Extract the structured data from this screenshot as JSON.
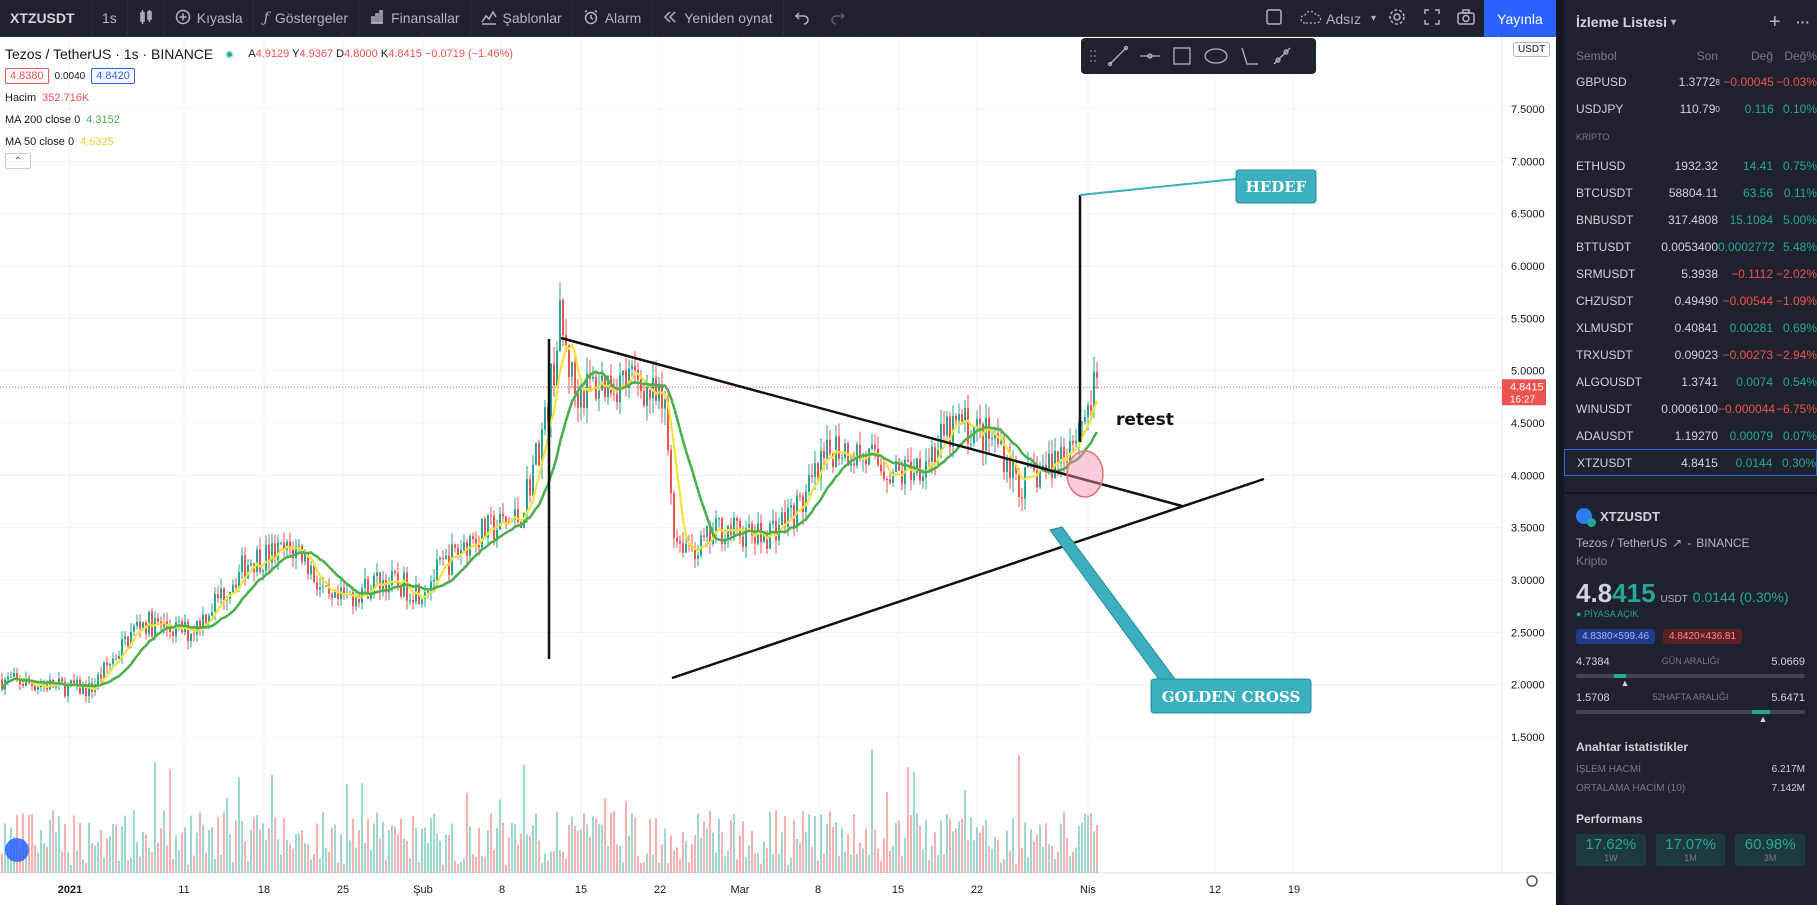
{
  "toolbar": {
    "symbol": "XTZUSDT",
    "interval": "1s",
    "compare": "Kıyasla",
    "indicators": "Göstergeler",
    "financials": "Finansallar",
    "templates": "Şablonlar",
    "alert": "Alarm",
    "replay": "Yeniden oynat",
    "layout_name": "Adsız",
    "publish": "Yayınla"
  },
  "legend": {
    "title": "Tezos / TetherUS · 1s · BINANCE",
    "open_label": "A",
    "open": "4.9129",
    "high_label": "Y",
    "high": "4.9367",
    "low_label": "D",
    "low": "4.8000",
    "close_label": "K",
    "close": "4.8415",
    "change": "−0.0719 (−1.46%)",
    "bid": "4.8380",
    "spread": "0.0040",
    "ask": "4.8420",
    "volume_label": "Hacim",
    "volume": "352.716K",
    "ma200_label": "MA 200 close 0",
    "ma200": "4.3152",
    "ma50_label": "MA 50 close 0",
    "ma50": "4.6325",
    "currency": "USDT",
    "last_price": "4.8415",
    "countdown": "16:27"
  },
  "price_axis": [
    "7.5000",
    "7.0000",
    "6.5000",
    "6.0000",
    "5.5000",
    "5.0000",
    "4.5000",
    "4.0000",
    "3.5000",
    "3.0000",
    "2.5000",
    "2.0000",
    "1.5000"
  ],
  "time_axis": [
    "2021",
    "11",
    "18",
    "25",
    "Şub",
    "8",
    "15",
    "22",
    "Mar",
    "8",
    "15",
    "22",
    "Nis",
    "12",
    "19"
  ],
  "annotations": {
    "target": "HEDEF",
    "golden_cross": "GOLDEN CROSS",
    "retest": "retest"
  },
  "colors": {
    "ma50": "#f5e23b",
    "ma200": "#4caf50",
    "up": "#26a69a",
    "down": "#ef5350",
    "callout": "#3ab0c0",
    "accent": "#2962ff"
  },
  "watchlist": {
    "title": "İzleme Listesi",
    "columns": [
      "Sembol",
      "Son",
      "Değ",
      "Değ%"
    ],
    "forex": [
      {
        "symbol": "GBPUSD",
        "last": "1.3772",
        "last_sup": "8",
        "chg": "−0.00045",
        "chgp": "−0.03%",
        "dir": "down"
      },
      {
        "symbol": "USDJPY",
        "last": "110.79",
        "last_sup": "0",
        "chg": "0.116",
        "chgp": "0.10%",
        "dir": "up"
      }
    ],
    "crypto_label": "KRİPTO",
    "crypto": [
      {
        "symbol": "ETHUSD",
        "last": "1932.32",
        "chg": "14.41",
        "chgp": "0.75%",
        "dir": "up"
      },
      {
        "symbol": "BTCUSDT",
        "last": "58804.11",
        "chg": "63.56",
        "chgp": "0.11%",
        "dir": "up",
        "last_dir": "down"
      },
      {
        "symbol": "BNBUSDT",
        "last": "317.4808",
        "chg": "15.1084",
        "chgp": "5.00%",
        "dir": "up"
      },
      {
        "symbol": "BTTUSDT",
        "last": "0.0053400",
        "chg": "0.0002772",
        "chgp": "5.48%",
        "dir": "up"
      },
      {
        "symbol": "SRMUSDT",
        "last": "5.3938",
        "chg": "−0.1112",
        "chgp": "−2.02%",
        "dir": "down"
      },
      {
        "symbol": "CHZUSDT",
        "last": "0.49490",
        "chg": "−0.00544",
        "chgp": "−1.09%",
        "dir": "down"
      },
      {
        "symbol": "XLMUSDT",
        "last": "0.40841",
        "chg": "0.00281",
        "chgp": "0.69%",
        "dir": "up"
      },
      {
        "symbol": "TRXUSDT",
        "last": "0.09023",
        "chg": "−0.00273",
        "chgp": "−2.94%",
        "dir": "down"
      },
      {
        "symbol": "ALGOUSDT",
        "last": "1.3741",
        "chg": "0.0074",
        "chgp": "0.54%",
        "dir": "up"
      },
      {
        "symbol": "WINUSDT",
        "last": "0.0006100",
        "chg": "−0.000044",
        "chgp": "−6.75%",
        "dir": "down"
      },
      {
        "symbol": "ADAUSDT",
        "last": "1.19270",
        "chg": "0.00079",
        "chgp": "0.07%",
        "dir": "up",
        "last_dir": "down"
      },
      {
        "symbol": "XTZUSDT",
        "last": "4.8415",
        "chg": "0.0144",
        "chgp": "0.30%",
        "dir": "up",
        "selected": true
      }
    ]
  },
  "details": {
    "symbol": "XTZUSDT",
    "name": "Tezos / TetherUS",
    "exchange": "BINANCE",
    "type": "Kripto",
    "price_main": "4.8",
    "price_tail": "415",
    "currency": "USDT",
    "change": "0.0144 (0.30%)",
    "market_status": "PİYASA AÇIK",
    "bid": "4.8380×599.46",
    "ask": "4.8420×436.81",
    "day_low": "4.7384",
    "day_range_label": "GÜN ARALIĞI",
    "day_high": "5.0669",
    "day_pos": 0.19,
    "w52_low": "1.5708",
    "w52_label": "52HAFTA ARALIĞI",
    "w52_high": "5.6471",
    "w52_pos": 0.81,
    "stats_title": "Anahtar istatistikler",
    "volume_label": "İŞLEM HACMİ",
    "volume": "6.217M",
    "avg_volume_label": "ORTALAMA HACİM (10)",
    "avg_volume": "7.142M",
    "perf_title": "Performans",
    "perf": [
      {
        "value": "17.62%",
        "label": "1W"
      },
      {
        "value": "17.07%",
        "label": "1M"
      },
      {
        "value": "60.98%",
        "label": "3M"
      }
    ]
  }
}
